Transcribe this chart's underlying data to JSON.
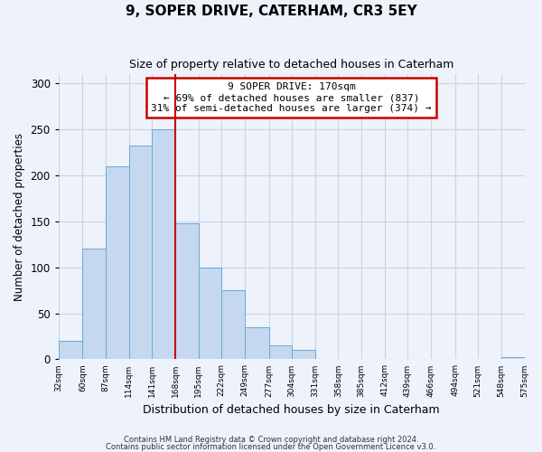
{
  "title": "9, SOPER DRIVE, CATERHAM, CR3 5EY",
  "subtitle": "Size of property relative to detached houses in Caterham",
  "xlabel": "Distribution of detached houses by size in Caterham",
  "ylabel": "Number of detached properties",
  "bins": [
    32,
    60,
    87,
    114,
    141,
    168,
    195,
    222,
    249,
    277,
    304,
    331,
    358,
    385,
    412,
    439,
    466,
    494,
    521,
    548,
    575
  ],
  "counts": [
    20,
    120,
    210,
    232,
    250,
    148,
    100,
    75,
    35,
    15,
    10,
    0,
    0,
    0,
    0,
    0,
    0,
    0,
    0,
    2
  ],
  "bar_color": "#c5d8f0",
  "bar_edge_color": "#6aaad4",
  "vline_x": 168,
  "vline_color": "#cc0000",
  "annotation_text": "9 SOPER DRIVE: 170sqm\n← 69% of detached houses are smaller (837)\n31% of semi-detached houses are larger (374) →",
  "annotation_box_color": "white",
  "annotation_box_edge_color": "#cc0000",
  "ylim": [
    0,
    310
  ],
  "yticks": [
    0,
    50,
    100,
    150,
    200,
    250,
    300
  ],
  "grid_color": "#c8d4e8",
  "background_color": "#eef2fb",
  "plot_bg_color": "#eef2fb",
  "tick_labels": [
    "32sqm",
    "60sqm",
    "87sqm",
    "114sqm",
    "141sqm",
    "168sqm",
    "195sqm",
    "222sqm",
    "249sqm",
    "277sqm",
    "304sqm",
    "331sqm",
    "358sqm",
    "385sqm",
    "412sqm",
    "439sqm",
    "466sqm",
    "494sqm",
    "521sqm",
    "548sqm",
    "575sqm"
  ],
  "footer1": "Contains HM Land Registry data © Crown copyright and database right 2024.",
  "footer2": "Contains public sector information licensed under the Open Government Licence v3.0."
}
